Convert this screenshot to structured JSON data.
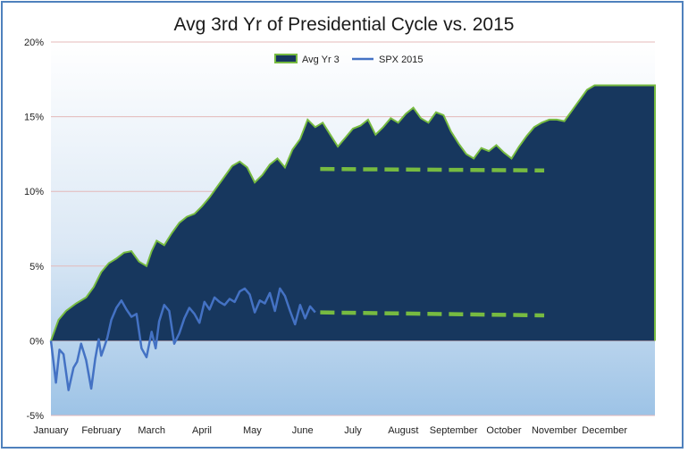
{
  "chart_data": {
    "type": "area",
    "title": "Avg 3rd Yr of Presidential Cycle vs. 2015",
    "xlabel": "",
    "ylabel": "",
    "ylim": [
      -5,
      20
    ],
    "y_ticks": [
      "20%",
      "15%",
      "10%",
      "5%",
      "0%",
      "-5%"
    ],
    "y_tick_values": [
      20,
      15,
      10,
      5,
      0,
      -5
    ],
    "x_ticks": [
      "January",
      "February",
      "March",
      "April",
      "May",
      "June",
      "July",
      "August",
      "September",
      "October",
      "November",
      "December"
    ],
    "x_tick_values": [
      0,
      1,
      2,
      3,
      4,
      5,
      6,
      7,
      8,
      9,
      10,
      11
    ],
    "xlim": [
      0,
      12
    ],
    "legend_position": "top-center",
    "grid": "horizontal",
    "series": [
      {
        "name": "Avg Yr 3",
        "type": "area",
        "color": "#17375e",
        "edge_color": "#77bb41",
        "x": [
          0,
          0.15,
          0.3,
          0.5,
          0.7,
          0.85,
          1.0,
          1.15,
          1.3,
          1.45,
          1.6,
          1.75,
          1.9,
          2.0,
          2.1,
          2.25,
          2.4,
          2.55,
          2.7,
          2.85,
          3.0,
          3.15,
          3.3,
          3.45,
          3.6,
          3.75,
          3.9,
          4.05,
          4.2,
          4.35,
          4.5,
          4.65,
          4.8,
          4.95,
          5.1,
          5.25,
          5.4,
          5.55,
          5.7,
          5.85,
          6.0,
          6.15,
          6.3,
          6.45,
          6.6,
          6.75,
          6.9,
          7.05,
          7.2,
          7.35,
          7.5,
          7.65,
          7.8,
          7.95,
          8.1,
          8.25,
          8.4,
          8.55,
          8.7,
          8.85,
          9.0,
          9.15,
          9.3,
          9.45,
          9.6,
          9.75,
          9.9,
          10.05,
          10.2,
          10.35,
          10.5,
          10.65,
          10.8,
          10.95,
          11.1,
          11.25,
          11.4,
          11.55,
          11.7,
          11.85,
          12.0
        ],
        "values": [
          0,
          1.4,
          2.0,
          2.5,
          2.9,
          3.6,
          4.6,
          5.2,
          5.5,
          5.9,
          6.0,
          5.3,
          5.0,
          6.0,
          6.7,
          6.4,
          7.2,
          7.9,
          8.3,
          8.5,
          9.0,
          9.6,
          10.3,
          11.0,
          11.7,
          12.0,
          11.6,
          10.6,
          11.1,
          11.8,
          12.2,
          11.6,
          12.8,
          13.5,
          14.8,
          14.3,
          14.6,
          13.8,
          13.0,
          13.6,
          14.2,
          14.4,
          14.8,
          13.8,
          14.3,
          14.9,
          14.6,
          15.2,
          15.6,
          14.9,
          14.6,
          15.3,
          15.1,
          14.0,
          13.2,
          12.5,
          12.2,
          12.9,
          12.7,
          13.1,
          12.6,
          12.2,
          13.0,
          13.7,
          14.3,
          14.6,
          14.8,
          14.8,
          14.7,
          15.4,
          16.1,
          16.8,
          17.1,
          17.1,
          17.1,
          17.1,
          17.1,
          17.1,
          17.1,
          17.1,
          17.1
        ]
      },
      {
        "name": "SPX 2015",
        "type": "line",
        "color": "#4472c4",
        "x": [
          0,
          0.1,
          0.17,
          0.25,
          0.35,
          0.45,
          0.52,
          0.6,
          0.7,
          0.8,
          0.88,
          0.95,
          1.0,
          1.05,
          1.12,
          1.2,
          1.3,
          1.4,
          1.5,
          1.6,
          1.7,
          1.8,
          1.9,
          2.0,
          2.08,
          2.15,
          2.25,
          2.35,
          2.45,
          2.55,
          2.65,
          2.75,
          2.85,
          2.95,
          3.05,
          3.15,
          3.25,
          3.35,
          3.45,
          3.55,
          3.65,
          3.75,
          3.85,
          3.95,
          4.05,
          4.15,
          4.25,
          4.35,
          4.45,
          4.55,
          4.65,
          4.75,
          4.85,
          4.95,
          5.05,
          5.15,
          5.25
        ],
        "values": [
          0,
          -2.8,
          -0.6,
          -0.9,
          -3.3,
          -1.8,
          -1.4,
          -0.2,
          -1.3,
          -3.2,
          -1.2,
          0.1,
          -1.0,
          -0.5,
          0.2,
          1.4,
          2.2,
          2.7,
          2.1,
          1.6,
          1.8,
          -0.5,
          -1.1,
          0.6,
          -0.5,
          1.3,
          2.4,
          2.0,
          -0.2,
          0.5,
          1.5,
          2.2,
          1.8,
          1.2,
          2.6,
          2.1,
          2.9,
          2.6,
          2.4,
          2.8,
          2.6,
          3.3,
          3.5,
          3.1,
          1.9,
          2.7,
          2.5,
          3.2,
          2.0,
          3.5,
          3.0,
          2.0,
          1.1,
          2.4,
          1.5,
          2.3,
          1.9
        ]
      }
    ],
    "annotations": [
      {
        "type": "dashed-line",
        "color": "#77bb41",
        "x": [
          5.35,
          9.8
        ],
        "y": [
          11.5,
          11.4
        ]
      },
      {
        "type": "dashed-line",
        "color": "#77bb41",
        "x": [
          5.35,
          9.8
        ],
        "y": [
          1.9,
          1.7
        ]
      }
    ]
  }
}
